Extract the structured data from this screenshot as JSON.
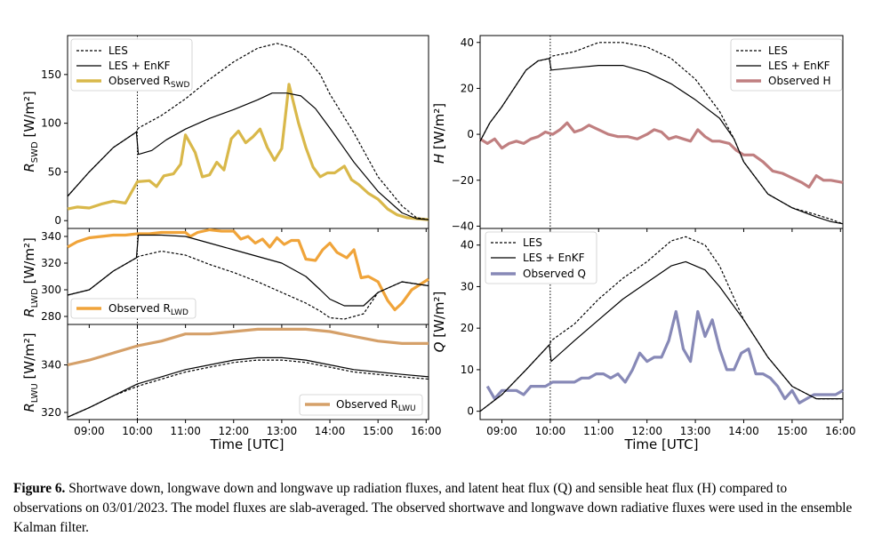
{
  "figure": {
    "caption_label": "Figure 6.",
    "caption_text": "Shortwave down, longwave down and longwave up radiation fluxes, and latent heat flux (Q) and sensible heat flux (H) compared to observations on 03/01/2023. The model fluxes are slab-averaged. The observed shortwave and longwave down radiative fluxes were used in the ensemble Kalman filter."
  },
  "colors": {
    "les": "#000000",
    "enkf": "#000000",
    "swd": "#d9b84a",
    "lwd": "#f0a43a",
    "lwu": "#d5a069",
    "h": "#c07f80",
    "q": "#8789b7"
  },
  "x_ticks": [
    "09:00",
    "10:00",
    "11:00",
    "12:00",
    "13:00",
    "14:00",
    "15:00",
    "16:00"
  ],
  "x_label": "Time [UTC]",
  "chart_data": [
    {
      "type": "line",
      "id": "swd",
      "ylabel": "R_SWD [W/m²]",
      "ylim": [
        -8,
        190
      ],
      "yticks": [
        0,
        50,
        100,
        150
      ],
      "xlim": [
        8.55,
        16.05
      ],
      "legend": [
        "LES",
        "LES + EnKF",
        "Observed R_SWD"
      ],
      "legend_position": "upper-left",
      "series": [
        {
          "name": "LES",
          "style": "dashed",
          "x": [
            8.55,
            9,
            9.5,
            9.98,
            10.02,
            10.5,
            11,
            11.5,
            12,
            12.5,
            12.9,
            13.2,
            13.5,
            13.8,
            14,
            14.5,
            15,
            15.5,
            15.8,
            16.05
          ],
          "y": [
            25,
            50,
            75,
            91,
            95,
            108,
            125,
            145,
            163,
            177,
            182,
            178,
            168,
            150,
            130,
            90,
            45,
            15,
            3,
            1
          ]
        },
        {
          "name": "LES + EnKF",
          "style": "solid",
          "x": [
            8.55,
            9,
            9.5,
            9.98,
            10.02,
            10.3,
            10.6,
            11,
            11.5,
            12,
            12.5,
            12.8,
            13.1,
            13.4,
            13.7,
            14,
            14.5,
            15,
            15.5,
            15.8,
            16.05
          ],
          "y": [
            25,
            50,
            75,
            91,
            68,
            72,
            83,
            94,
            105,
            114,
            124,
            131,
            131,
            128,
            115,
            95,
            60,
            30,
            8,
            2,
            1
          ]
        },
        {
          "name": "Observed R_SWD",
          "style": "solid",
          "x": [
            8.55,
            8.75,
            9,
            9.25,
            9.5,
            9.75,
            10,
            10.25,
            10.4,
            10.55,
            10.75,
            10.9,
            11,
            11.2,
            11.35,
            11.5,
            11.65,
            11.8,
            11.95,
            12.1,
            12.25,
            12.4,
            12.55,
            12.7,
            12.85,
            13,
            13.15,
            13.35,
            13.5,
            13.65,
            13.8,
            13.95,
            14.1,
            14.3,
            14.45,
            14.6,
            14.8,
            15,
            15.2,
            15.4,
            15.6,
            15.8,
            16.05
          ],
          "y": [
            12,
            14,
            13,
            17,
            20,
            18,
            40,
            41,
            35,
            46,
            48,
            58,
            88,
            70,
            45,
            47,
            60,
            52,
            84,
            92,
            80,
            86,
            94,
            75,
            62,
            74,
            140,
            100,
            75,
            55,
            45,
            49,
            49,
            56,
            42,
            37,
            28,
            22,
            12,
            6,
            3,
            2,
            1
          ]
        }
      ]
    },
    {
      "type": "line",
      "id": "lwd",
      "ylabel": "R_LWD [W/m²]",
      "ylim": [
        274,
        346
      ],
      "yticks": [
        280,
        300,
        320,
        340
      ],
      "xlim": [
        8.55,
        16.05
      ],
      "legend": [
        "Observed R_LWD"
      ],
      "legend_position": "lower-left",
      "series": [
        {
          "name": "LES",
          "style": "dashed",
          "x": [
            8.55,
            9,
            9.5,
            9.98,
            10.02,
            10.5,
            11,
            11.5,
            12,
            12.5,
            13,
            13.5,
            13.8,
            14,
            14.3,
            14.7,
            15,
            15.5,
            16.05
          ],
          "y": [
            296,
            300,
            314,
            324,
            325,
            329,
            326,
            319,
            313,
            306,
            298,
            290,
            284,
            279,
            278,
            282,
            298,
            306,
            303
          ]
        },
        {
          "name": "LES + EnKF",
          "style": "solid",
          "x": [
            8.55,
            9,
            9.5,
            9.98,
            10.02,
            10.5,
            11,
            11.5,
            12,
            12.5,
            13,
            13.5,
            13.8,
            14,
            14.3,
            14.7,
            15,
            15.5,
            16.05
          ],
          "y": [
            296,
            300,
            314,
            324,
            341,
            341,
            340,
            335,
            330,
            325,
            320,
            310,
            300,
            293,
            288,
            288,
            298,
            306,
            303
          ]
        },
        {
          "name": "Observed R_LWD",
          "style": "solid",
          "x": [
            8.55,
            8.75,
            9,
            9.25,
            9.5,
            9.75,
            10,
            10.25,
            10.5,
            10.75,
            11,
            11.1,
            11.25,
            11.5,
            11.75,
            12,
            12.15,
            12.3,
            12.45,
            12.6,
            12.75,
            12.9,
            13.05,
            13.2,
            13.35,
            13.5,
            13.7,
            13.85,
            14,
            14.15,
            14.35,
            14.5,
            14.65,
            14.8,
            15,
            15.2,
            15.35,
            15.5,
            15.7,
            16.05
          ],
          "y": [
            332,
            336,
            339,
            340,
            341,
            341,
            342,
            342,
            343,
            343,
            343,
            340,
            343,
            345,
            344,
            344,
            338,
            340,
            335,
            338,
            332,
            339,
            334,
            337,
            337,
            323,
            322,
            330,
            335,
            328,
            324,
            330,
            309,
            310,
            306,
            292,
            285,
            290,
            300,
            308
          ]
        }
      ]
    },
    {
      "type": "line",
      "id": "lwu",
      "ylabel": "R_LWU [W/m²]",
      "ylim": [
        317,
        357
      ],
      "yticks": [
        320,
        340
      ],
      "xlim": [
        8.55,
        16.05
      ],
      "legend": [
        "Observed R_LWU"
      ],
      "legend_position": "lower-right",
      "series": [
        {
          "name": "LES",
          "style": "dashed",
          "x": [
            8.55,
            9,
            9.5,
            10,
            10.5,
            11,
            11.5,
            12,
            12.5,
            13,
            13.5,
            14,
            14.5,
            15,
            15.5,
            16.05
          ],
          "y": [
            318,
            322,
            327,
            331,
            334,
            337,
            339,
            341,
            342,
            342,
            341,
            339,
            337,
            336,
            335,
            334
          ]
        },
        {
          "name": "LES + EnKF",
          "style": "solid",
          "x": [
            8.55,
            9,
            9.5,
            10,
            10.5,
            11,
            11.5,
            12,
            12.5,
            13,
            13.5,
            14,
            14.5,
            15,
            15.5,
            16.05
          ],
          "y": [
            318,
            322,
            327,
            332,
            335,
            338,
            340,
            342,
            343,
            343,
            342,
            340,
            338,
            337,
            336,
            335
          ]
        },
        {
          "name": "Observed R_LWU",
          "style": "solid",
          "x": [
            8.55,
            9,
            9.5,
            10,
            10.5,
            11,
            11.5,
            12,
            12.5,
            13,
            13.5,
            14,
            14.5,
            15,
            15.5,
            16.05
          ],
          "y": [
            340,
            342,
            345,
            348,
            350,
            353,
            353,
            354,
            355,
            355,
            355,
            354,
            352,
            350,
            349,
            349
          ]
        }
      ]
    },
    {
      "type": "line",
      "id": "h",
      "ylabel": "H [W/m²]",
      "ylim": [
        -41,
        43
      ],
      "yticks": [
        -40,
        -20,
        0,
        20,
        40
      ],
      "xlim": [
        8.55,
        16.05
      ],
      "legend": [
        "LES",
        "LES + EnKF",
        "Observed H"
      ],
      "legend_position": "upper-right",
      "series": [
        {
          "name": "LES",
          "style": "dashed",
          "x": [
            8.55,
            8.75,
            9,
            9.25,
            9.5,
            9.75,
            9.98,
            10.02,
            10.5,
            11,
            11.5,
            12,
            12.5,
            13,
            13.5,
            13.8,
            14,
            14.5,
            15,
            15.5,
            15.8,
            16.05
          ],
          "y": [
            -3,
            5,
            12,
            20,
            28,
            32,
            33,
            34,
            36,
            40,
            40,
            38,
            33,
            24,
            10,
            -2,
            -12,
            -26,
            -32,
            -35,
            -37,
            -39
          ]
        },
        {
          "name": "LES + EnKF",
          "style": "solid",
          "x": [
            8.55,
            8.75,
            9,
            9.25,
            9.5,
            9.75,
            9.98,
            10.02,
            10.5,
            11,
            11.5,
            12,
            12.5,
            13,
            13.5,
            13.8,
            14,
            14.5,
            15,
            15.5,
            15.8,
            16.05
          ],
          "y": [
            -3,
            5,
            12,
            20,
            28,
            32,
            33,
            28,
            29,
            30,
            30,
            27,
            22,
            15,
            7,
            -2,
            -12,
            -26,
            -32,
            -36,
            -38,
            -39
          ]
        },
        {
          "name": "Observed H",
          "style": "solid",
          "x": [
            8.55,
            8.7,
            8.85,
            9,
            9.15,
            9.3,
            9.45,
            9.6,
            9.75,
            9.9,
            10.05,
            10.2,
            10.35,
            10.5,
            10.65,
            10.8,
            11,
            11.2,
            11.4,
            11.6,
            11.8,
            12,
            12.15,
            12.3,
            12.45,
            12.6,
            12.75,
            12.9,
            13.05,
            13.2,
            13.35,
            13.5,
            13.7,
            13.85,
            14,
            14.2,
            14.4,
            14.6,
            14.8,
            15,
            15.2,
            15.35,
            15.5,
            15.65,
            15.8,
            16.05
          ],
          "y": [
            -2,
            -4,
            -2,
            -6,
            -4,
            -3,
            -4,
            -2,
            -1,
            1,
            0,
            2,
            5,
            1,
            2,
            4,
            2,
            0,
            -1,
            -1,
            -2,
            0,
            2,
            1,
            -2,
            -1,
            -2,
            -3,
            2,
            -1,
            -3,
            -3,
            -4,
            -7,
            -9,
            -9,
            -12,
            -16,
            -17,
            -19,
            -21,
            -23,
            -18,
            -20,
            -20,
            -21
          ]
        }
      ]
    },
    {
      "type": "line",
      "id": "q",
      "ylabel": "Q [W/m²]",
      "ylim": [
        -2,
        44
      ],
      "yticks": [
        0,
        10,
        20,
        30,
        40
      ],
      "xlim": [
        8.55,
        16.05
      ],
      "legend": [
        "LES",
        "LES + EnKF",
        "Observed Q"
      ],
      "legend_position": "upper-left",
      "series": [
        {
          "name": "LES",
          "style": "dashed",
          "x": [
            8.55,
            9,
            9.5,
            9.98,
            10.02,
            10.5,
            11,
            11.5,
            12,
            12.5,
            12.8,
            13,
            13.2,
            13.5,
            14,
            14.5,
            15,
            15.5,
            16.05
          ],
          "y": [
            0,
            4,
            10,
            16,
            17,
            21,
            27,
            32,
            36,
            41,
            42,
            41,
            40,
            35,
            22,
            13,
            6,
            3,
            3
          ]
        },
        {
          "name": "LES + EnKF",
          "style": "solid",
          "x": [
            8.55,
            9,
            9.5,
            9.98,
            10.02,
            10.5,
            11,
            11.5,
            12,
            12.5,
            12.8,
            13,
            13.2,
            13.5,
            14,
            14.5,
            15,
            15.5,
            16.05
          ],
          "y": [
            0,
            4,
            10,
            16,
            12,
            17,
            22,
            27,
            31,
            35,
            36,
            35,
            34,
            30,
            22,
            13,
            6,
            3,
            3
          ]
        },
        {
          "name": "Observed Q",
          "style": "solid",
          "x": [
            8.7,
            8.85,
            9,
            9.15,
            9.3,
            9.45,
            9.6,
            9.75,
            9.9,
            10.05,
            10.2,
            10.35,
            10.5,
            10.65,
            10.8,
            10.95,
            11.1,
            11.25,
            11.4,
            11.55,
            11.7,
            11.85,
            12,
            12.15,
            12.3,
            12.45,
            12.6,
            12.75,
            12.9,
            13.05,
            13.2,
            13.35,
            13.5,
            13.65,
            13.8,
            13.95,
            14.1,
            14.25,
            14.4,
            14.55,
            14.7,
            14.85,
            15,
            15.15,
            15.3,
            15.45,
            15.6,
            15.75,
            15.9,
            16.05
          ],
          "y": [
            6,
            3,
            5,
            5,
            5,
            4,
            6,
            6,
            6,
            7,
            7,
            7,
            7,
            8,
            8,
            9,
            9,
            8,
            9,
            7,
            10,
            14,
            12,
            13,
            13,
            17,
            24,
            15,
            12,
            24,
            18,
            22,
            15,
            10,
            10,
            14,
            15,
            9,
            9,
            8,
            6,
            3,
            5,
            2,
            3,
            4,
            4,
            4,
            4,
            5
          ]
        }
      ]
    }
  ],
  "legend_labels": {
    "les": "LES",
    "enkf": "LES + EnKF",
    "swd_main": "Observed R",
    "swd_sub": "SWD",
    "lwd_main": "Observed R",
    "lwd_sub": "LWD",
    "lwu_main": "Observed R",
    "lwu_sub": "LWU",
    "h_main": "Observed H",
    "q_main": "Observed Q"
  },
  "ylabels": {
    "swd_main": "R",
    "swd_sub": "SWD",
    "swd_unit": " [W/m²]",
    "lwd_main": "R",
    "lwd_sub": "LWD",
    "lwd_unit": " [W/m²]",
    "lwu_main": "R",
    "lwu_sub": "LWU",
    "lwu_unit": " [W/m²]",
    "h_main": "H",
    "h_unit": " [W/m²]",
    "q_main": "Q",
    "q_unit": " [W/m²]"
  }
}
